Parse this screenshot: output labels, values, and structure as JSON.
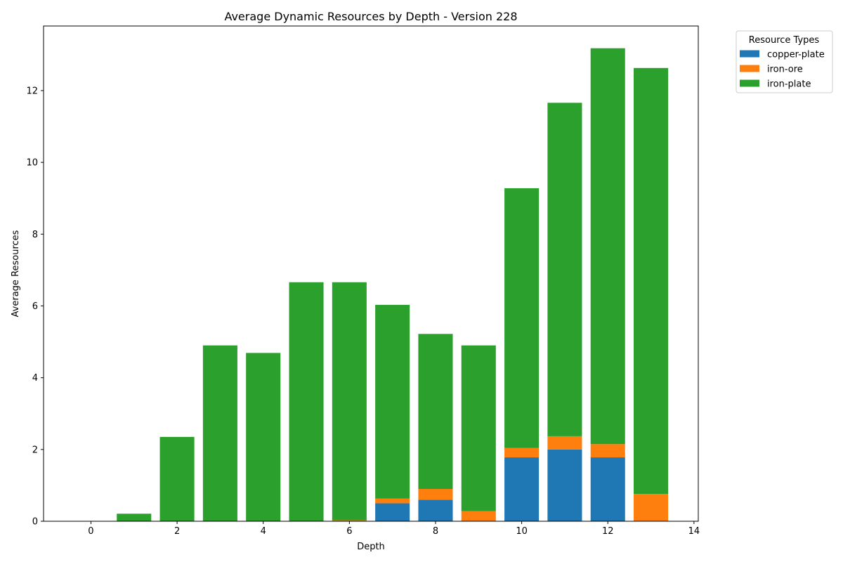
{
  "chart_data": {
    "type": "bar",
    "stacked": true,
    "title": "Average Dynamic Resources by Depth - Version 228",
    "xlabel": "Depth",
    "ylabel": "Average Resources",
    "x": [
      0,
      1,
      2,
      3,
      4,
      5,
      6,
      7,
      8,
      9,
      10,
      11,
      12,
      13
    ],
    "xlim": [
      -1.1,
      14.1
    ],
    "ylim": [
      0,
      13.8
    ],
    "xticks": [
      0,
      2,
      4,
      6,
      8,
      10,
      12,
      14
    ],
    "yticks": [
      0,
      2,
      4,
      6,
      8,
      10,
      12
    ],
    "grid": false,
    "legend": {
      "title": "Resource Types",
      "placement": "outside-top-right"
    },
    "series": [
      {
        "name": "copper-plate",
        "color": "#1f77b4",
        "values": [
          0,
          0,
          0,
          0,
          0,
          0,
          0,
          0.5,
          0.6,
          0,
          1.78,
          2.0,
          1.78,
          0
        ]
      },
      {
        "name": "iron-ore",
        "color": "#ff7f0e",
        "values": [
          0,
          0,
          0,
          0,
          0,
          0,
          0.03,
          0.13,
          0.3,
          0.28,
          0.26,
          0.37,
          0.37,
          0.76
        ]
      },
      {
        "name": "iron-plate",
        "color": "#2ca02c",
        "values": [
          0,
          0.21,
          2.35,
          4.9,
          4.69,
          6.66,
          6.63,
          5.4,
          4.32,
          4.62,
          7.24,
          9.29,
          11.03,
          11.87
        ]
      }
    ]
  }
}
